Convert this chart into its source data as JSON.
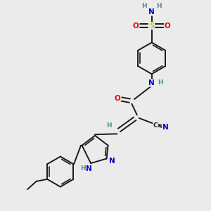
{
  "bg_color": "#ebebeb",
  "bond_color": "#1a1a1a",
  "bond_width": 1.4,
  "atom_colors": {
    "C": "#1a1a1a",
    "N": "#0000cc",
    "O": "#ee0000",
    "S": "#cccc00",
    "H": "#4a8f8f"
  },
  "font_size": 7.5,
  "small_font_size": 6.5
}
